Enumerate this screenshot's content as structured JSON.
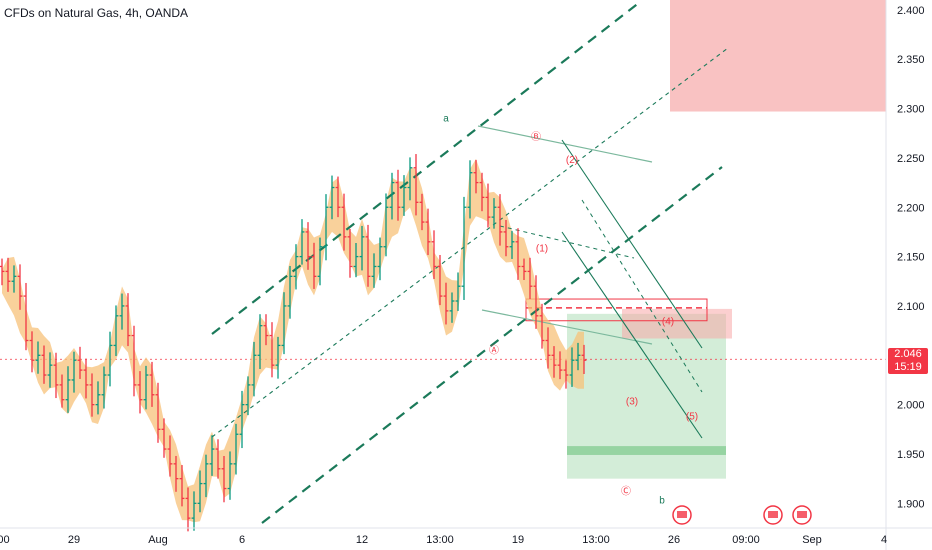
{
  "header": {
    "title": "CFDs on Natural Gas, 4h, OANDA"
  },
  "last_price": {
    "value": "2.046",
    "countdown": "15:19",
    "color": "#f23645"
  },
  "colors": {
    "up_bar": "#089981",
    "down_bar": "#f23645",
    "channel": "#1b7a5a",
    "ribbon": "#f7c27a",
    "stop_zone": "#f7a8a8",
    "target_zone": "#a8dcb2",
    "wave_label": "#f23645",
    "major_label": "#1b7a5a"
  },
  "chart_data": {
    "type": "ohlc",
    "symbol": "CFDs on Natural Gas",
    "timeframe": "4h",
    "source": "OANDA",
    "ylim": [
      1.875,
      2.41
    ],
    "y_ticks": [
      "2.400",
      "2.350",
      "2.300",
      "2.250",
      "2.200",
      "2.150",
      "2.100",
      "2.050",
      "2.000",
      "1.950",
      "1.900"
    ],
    "x_ticks": [
      {
        "label": ":00",
        "bar": 0
      },
      {
        "label": "29",
        "bar": 12
      },
      {
        "label": "Aug",
        "bar": 26
      },
      {
        "label": "6",
        "bar": 40
      },
      {
        "label": "12",
        "bar": 60
      },
      {
        "label": "13:00",
        "bar": 73
      },
      {
        "label": "19",
        "bar": 86
      },
      {
        "label": "13:00",
        "bar": 99
      },
      {
        "label": "26",
        "bar": 112
      },
      {
        "label": "09:00",
        "bar": 124
      },
      {
        "label": "Sep",
        "bar": 135
      },
      {
        "label": "4",
        "bar": 147
      }
    ],
    "closes": [
      2.135,
      2.125,
      2.13,
      2.11,
      2.065,
      2.045,
      2.05,
      2.03,
      2.04,
      2.02,
      2.005,
      2.025,
      2.045,
      2.035,
      2.02,
      2.0,
      2.01,
      2.03,
      2.06,
      2.09,
      2.1,
      2.07,
      2.02,
      2.005,
      2.03,
      2.01,
      1.975,
      1.955,
      1.94,
      1.925,
      1.905,
      1.885,
      1.9,
      1.92,
      1.94,
      1.955,
      1.935,
      1.915,
      1.94,
      1.97,
      2.0,
      2.02,
      2.05,
      2.08,
      2.07,
      2.04,
      2.06,
      2.1,
      2.13,
      2.15,
      2.175,
      2.15,
      2.13,
      2.16,
      2.2,
      2.22,
      2.2,
      2.17,
      2.14,
      2.15,
      2.17,
      2.13,
      2.14,
      2.16,
      2.2,
      2.225,
      2.2,
      2.22,
      2.24,
      2.205,
      2.185,
      2.165,
      2.14,
      2.11,
      2.095,
      2.105,
      2.12,
      2.2,
      2.235,
      2.225,
      2.21,
      2.19,
      2.2,
      2.175,
      2.16,
      2.165,
      2.14,
      2.135,
      2.12,
      2.09,
      2.065,
      2.05,
      2.04,
      2.035,
      2.03,
      2.045,
      2.05,
      2.045
    ],
    "ribbon_center": [
      2.125,
      2.125,
      2.12,
      2.1,
      2.08,
      2.06,
      2.05,
      2.04,
      2.04,
      2.03,
      2.02,
      2.02,
      2.03,
      2.03,
      2.02,
      2.01,
      2.01,
      2.02,
      2.05,
      2.07,
      2.09,
      2.08,
      2.04,
      2.02,
      2.02,
      2.01,
      1.99,
      1.97,
      1.95,
      1.93,
      1.91,
      1.9,
      1.9,
      1.91,
      1.93,
      1.95,
      1.94,
      1.93,
      1.94,
      1.96,
      1.99,
      2.01,
      2.04,
      2.06,
      2.06,
      2.05,
      2.06,
      2.09,
      2.12,
      2.14,
      2.16,
      2.15,
      2.14,
      2.15,
      2.18,
      2.2,
      2.2,
      2.18,
      2.16,
      2.15,
      2.16,
      2.14,
      2.14,
      2.15,
      2.18,
      2.2,
      2.2,
      2.21,
      2.22,
      2.21,
      2.19,
      2.17,
      2.14,
      2.12,
      2.1,
      2.1,
      2.11,
      2.16,
      2.21,
      2.22,
      2.21,
      2.2,
      2.19,
      2.18,
      2.17,
      2.16,
      2.15,
      2.14,
      2.12,
      2.1,
      2.08,
      2.06,
      2.05,
      2.04,
      2.04,
      2.04,
      2.045,
      2.045
    ],
    "zones": {
      "stop_loss": {
        "price_top": 2.41,
        "price_bottom": 2.297
      },
      "target_box": {
        "price_top": 2.092,
        "price_bottom": 1.925
      },
      "target_band": {
        "price_top": 1.958,
        "price_bottom": 1.949
      },
      "entry_band": {
        "price_top": 2.097,
        "price_bottom": 2.067
      }
    },
    "wave_labels": [
      {
        "text": "a",
        "type": "major",
        "bar": 74,
        "price": 2.287
      },
      {
        "text": "b",
        "type": "major",
        "bar": 110,
        "price": 1.9
      },
      {
        "text": "Ⓑ",
        "type": "circled",
        "bar": 89,
        "price": 2.268
      },
      {
        "text": "Ⓐ",
        "type": "circled",
        "bar": 82,
        "price": 2.052
      },
      {
        "text": "Ⓒ",
        "type": "circled",
        "bar": 104,
        "price": 1.909
      },
      {
        "text": "(1)",
        "type": "minor",
        "bar": 90,
        "price": 2.155
      },
      {
        "text": "(2)",
        "type": "minor",
        "bar": 95,
        "price": 2.245
      },
      {
        "text": "(3)",
        "type": "minor",
        "bar": 105,
        "price": 2.0
      },
      {
        "text": "(4)",
        "type": "minor",
        "bar": 111,
        "price": 2.081
      },
      {
        "text": "(5)",
        "type": "minor",
        "bar": 115,
        "price": 1.985
      }
    ]
  }
}
